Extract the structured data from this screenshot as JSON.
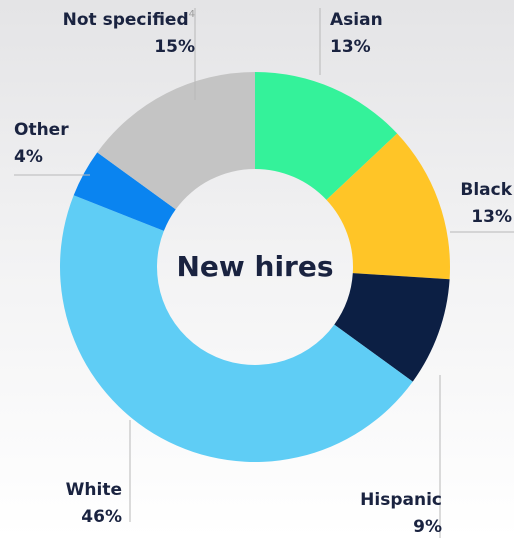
{
  "chart_data": {
    "type": "donut",
    "title": "New hires",
    "categories": [
      "Asian",
      "Black",
      "Hispanic",
      "White",
      "Other",
      "Not specified"
    ],
    "label_notes": [
      null,
      null,
      null,
      null,
      null,
      "4"
    ],
    "values": [
      13,
      13,
      9,
      46,
      4,
      15
    ],
    "value_labels": [
      "13%",
      "13%",
      "9%",
      "46%",
      "4%",
      "15%"
    ],
    "colors": [
      "#34f29a",
      "#ffc527",
      "#0c1f44",
      "#5fcdf5",
      "#0a84f0",
      "#c4c4c4"
    ]
  }
}
